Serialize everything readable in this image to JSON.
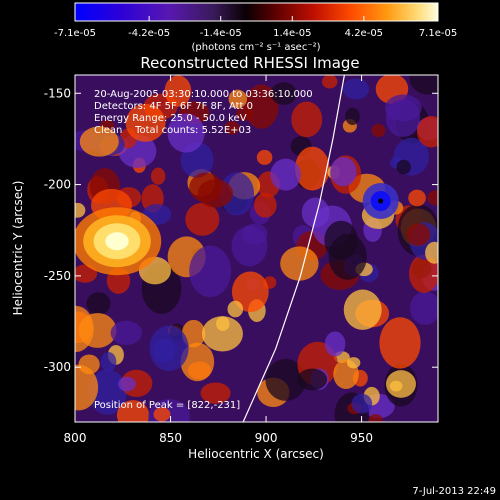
{
  "chart_data": {
    "type": "heatmap",
    "title": "Reconstructed RHESSI Image",
    "xlabel": "Heliocentric X (arcsec)",
    "ylabel": "Heliocentric Y (arcsec)",
    "xlim": [
      800,
      990
    ],
    "ylim": [
      -330,
      -140
    ],
    "x_ticks": [
      "800",
      "850",
      "900",
      "950"
    ],
    "x_tick_values": [
      800,
      850,
      900,
      950
    ],
    "y_ticks": [
      "-150",
      "-200",
      "-250",
      "-300"
    ],
    "y_tick_values": [
      -150,
      -200,
      -250,
      -300
    ],
    "colorbar": {
      "ticks": [
        "-7.1e-05",
        "-4.2e-05",
        "-1.4e-05",
        "1.4e-05",
        "4.2e-05",
        "7.1e-05"
      ],
      "tick_values": [
        -7.1e-05,
        -4.2e-05,
        -1.4e-05,
        1.4e-05,
        4.2e-05,
        7.1e-05
      ],
      "range": [
        -7.1e-05,
        7.1e-05
      ],
      "units_label": "(photons cm⁻² s⁻¹ asec⁻²)"
    },
    "annotations": [
      "20-Aug-2005 03:30:10.000 to 03:36:10.000",
      "Detectors: 4F 5F 6F 7F 8F, Att 0",
      "Energy Range: 25.0 - 50.0 keV",
      "Clean    Total counts: 5.52E+03"
    ],
    "peak_label": "Position of Peak = [822,-231]",
    "peak": [
      822,
      -231
    ],
    "minimum": [
      960,
      -209
    ],
    "limb_curve": [
      [
        888,
        -330
      ],
      [
        905,
        -290
      ],
      [
        918,
        -250
      ],
      [
        928,
        -210
      ],
      [
        935,
        -175
      ],
      [
        941,
        -140
      ]
    ],
    "colors": {
      "background": "#000000",
      "axes": "#ffffff",
      "limb": "#ffffff"
    }
  },
  "footer": {
    "timestamp": "7-Jul-2013 22:49"
  }
}
